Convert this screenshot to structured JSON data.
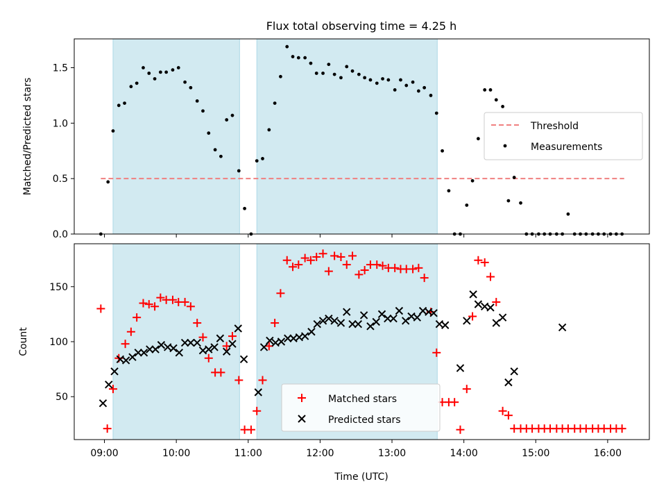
{
  "title": "Flux total observing time = 4.25 h",
  "colors": {
    "shade": "#add8e6",
    "threshold": "#f08080",
    "measurements": "#000000",
    "matched": "#ff0000",
    "predicted": "#000000"
  },
  "chart_data": [
    {
      "type": "scatter",
      "ylabel": "Matched/Predicted stars",
      "xlim": [
        8.58,
        16.58
      ],
      "ylim": [
        0,
        1.76
      ],
      "yticks": [
        0.0,
        0.5,
        1.0,
        1.5
      ],
      "ytick_labels": [
        "0.0",
        "0.5",
        "1.0",
        "1.5"
      ],
      "xticks": [
        9,
        10,
        11,
        12,
        13,
        14,
        15,
        16
      ],
      "shaded_intervals": [
        [
          9.12,
          10.88
        ],
        [
          11.12,
          13.63
        ]
      ],
      "threshold": {
        "value": 0.5,
        "x_range": [
          8.95,
          16.23
        ]
      },
      "legend": {
        "position": "center-right",
        "entries": [
          "Threshold",
          "Measurements"
        ]
      },
      "series": [
        {
          "name": "Measurements",
          "marker": "dot",
          "x": [
            8.95,
            9.05,
            9.12,
            9.2,
            9.28,
            9.37,
            9.45,
            9.54,
            9.62,
            9.7,
            9.78,
            9.86,
            9.95,
            10.03,
            10.12,
            10.2,
            10.29,
            10.37,
            10.45,
            10.54,
            10.62,
            10.7,
            10.78,
            10.87,
            10.95,
            11.04,
            11.12,
            11.2,
            11.29,
            11.37,
            11.45,
            11.54,
            11.62,
            11.7,
            11.79,
            11.87,
            11.95,
            12.04,
            12.12,
            12.2,
            12.29,
            12.37,
            12.45,
            12.54,
            12.62,
            12.7,
            12.79,
            12.87,
            12.95,
            13.04,
            13.12,
            13.2,
            13.29,
            13.37,
            13.45,
            13.54,
            13.62,
            13.7,
            13.79,
            13.87,
            13.95,
            14.04,
            14.12,
            14.2,
            14.29,
            14.37,
            14.45,
            14.54,
            14.62,
            14.7,
            14.79,
            14.87,
            14.95,
            15.04,
            15.12,
            15.2,
            15.29,
            15.37,
            15.45,
            15.54,
            15.62,
            15.7,
            15.79,
            15.87,
            15.95,
            16.04,
            16.12,
            16.2
          ],
          "y": [
            0.0,
            0.47,
            0.93,
            1.16,
            1.18,
            1.33,
            1.36,
            1.5,
            1.45,
            1.4,
            1.46,
            1.46,
            1.48,
            1.5,
            1.37,
            1.32,
            1.2,
            1.11,
            0.91,
            0.76,
            0.7,
            1.03,
            1.07,
            0.57,
            0.23,
            0.0,
            0.66,
            0.68,
            0.94,
            1.18,
            1.42,
            1.69,
            1.6,
            1.59,
            1.59,
            1.54,
            1.45,
            1.45,
            1.53,
            1.44,
            1.41,
            1.51,
            1.47,
            1.44,
            1.41,
            1.39,
            1.36,
            1.4,
            1.39,
            1.3,
            1.39,
            1.34,
            1.37,
            1.29,
            1.32,
            1.25,
            1.09,
            0.75,
            0.39,
            0.0,
            0.0,
            0.26,
            0.48,
            0.86,
            1.3,
            1.3,
            1.21,
            1.15,
            0.3,
            0.51,
            0.28,
            0.0,
            0.0,
            0.0,
            0.0,
            0.0,
            0.0,
            0.0,
            0.18,
            0.0,
            0.0,
            0.0,
            0.0,
            0.0,
            0.0,
            0.0,
            0.0,
            0.0
          ]
        }
      ]
    },
    {
      "type": "scatter",
      "xlabel": "Time (UTC)",
      "ylabel": "Count",
      "xlim": [
        8.58,
        16.58
      ],
      "ylim": [
        11,
        189
      ],
      "yticks": [
        50,
        100,
        150
      ],
      "ytick_labels": [
        "50",
        "100",
        "150"
      ],
      "xticks": [
        9,
        10,
        11,
        12,
        13,
        14,
        15,
        16
      ],
      "xtick_labels": [
        "09:00",
        "10:00",
        "11:00",
        "12:00",
        "13:00",
        "14:00",
        "15:00",
        "16:00"
      ],
      "shaded_intervals": [
        [
          9.12,
          10.88
        ],
        [
          11.12,
          13.63
        ]
      ],
      "legend": {
        "position": "lower-center",
        "entries": [
          "Matched stars",
          "Predicted stars"
        ]
      },
      "series": [
        {
          "name": "Matched stars",
          "marker": "plus",
          "x": [
            8.95,
            9.04,
            9.12,
            9.2,
            9.29,
            9.37,
            9.45,
            9.54,
            9.62,
            9.7,
            9.78,
            9.86,
            9.95,
            10.03,
            10.12,
            10.2,
            10.29,
            10.37,
            10.45,
            10.54,
            10.62,
            10.7,
            10.78,
            10.87,
            10.95,
            11.04,
            11.12,
            11.2,
            11.29,
            11.37,
            11.45,
            11.54,
            11.62,
            11.7,
            11.79,
            11.87,
            11.95,
            12.04,
            12.12,
            12.2,
            12.29,
            12.37,
            12.45,
            12.54,
            12.62,
            12.7,
            12.79,
            12.87,
            12.95,
            13.04,
            13.12,
            13.2,
            13.29,
            13.37,
            13.45,
            13.54,
            13.62,
            13.7,
            13.79,
            13.87,
            13.95,
            14.04,
            14.12,
            14.2,
            14.29,
            14.37,
            14.45,
            14.54,
            14.62,
            14.7,
            14.79,
            14.87,
            14.95,
            15.04,
            15.12,
            15.2,
            15.29,
            15.37,
            15.45,
            15.54,
            15.62,
            15.7,
            15.79,
            15.87,
            15.95,
            16.04,
            16.12,
            16.2
          ],
          "y": [
            130,
            21,
            57,
            85,
            98,
            109,
            122,
            135,
            134,
            132,
            140,
            138,
            138,
            136,
            136,
            132,
            117,
            104,
            85,
            72,
            72,
            96,
            105,
            65,
            20,
            20,
            37,
            65,
            96,
            117,
            144,
            174,
            168,
            170,
            176,
            174,
            177,
            180,
            164,
            178,
            177,
            170,
            178,
            161,
            165,
            170,
            170,
            169,
            167,
            167,
            166,
            166,
            166,
            167,
            158,
            127,
            90,
            45,
            45,
            45,
            20,
            57,
            123,
            174,
            172,
            159,
            136,
            37,
            33,
            21,
            21,
            21,
            21,
            21,
            21,
            21,
            21,
            21,
            21,
            21,
            21,
            21,
            21,
            21,
            21,
            21,
            21,
            21
          ]
        },
        {
          "name": "Predicted stars",
          "marker": "x",
          "x": [
            8.98,
            9.06,
            9.14,
            9.22,
            9.3,
            9.39,
            9.47,
            9.55,
            9.63,
            9.71,
            9.79,
            9.88,
            9.96,
            10.04,
            10.12,
            10.2,
            10.29,
            10.37,
            10.45,
            10.53,
            10.61,
            10.7,
            10.78,
            10.86,
            10.94,
            11.14,
            11.22,
            11.3,
            11.38,
            11.46,
            11.55,
            11.63,
            11.71,
            11.79,
            11.88,
            11.96,
            12.04,
            12.12,
            12.2,
            12.29,
            12.37,
            12.45,
            12.53,
            12.61,
            12.7,
            12.78,
            12.86,
            12.94,
            13.02,
            13.1,
            13.19,
            13.27,
            13.35,
            13.43,
            13.51,
            13.58,
            13.66,
            13.74,
            13.95,
            14.04,
            14.13,
            14.2,
            14.29,
            14.37,
            14.45,
            14.54,
            14.62,
            14.7,
            15.37
          ],
          "y": [
            44,
            61,
            73,
            84,
            83,
            86,
            90,
            90,
            93,
            93,
            97,
            95,
            94,
            90,
            99,
            99,
            99,
            92,
            93,
            95,
            103,
            91,
            98,
            112,
            84,
            54,
            95,
            101,
            99,
            100,
            103,
            103,
            104,
            105,
            109,
            116,
            119,
            121,
            119,
            117,
            127,
            116,
            116,
            124,
            114,
            118,
            125,
            121,
            121,
            128,
            119,
            123,
            122,
            128,
            127,
            126,
            116,
            115,
            76,
            119,
            143,
            134,
            132,
            131,
            117,
            122,
            63,
            73,
            113
          ]
        }
      ]
    }
  ]
}
